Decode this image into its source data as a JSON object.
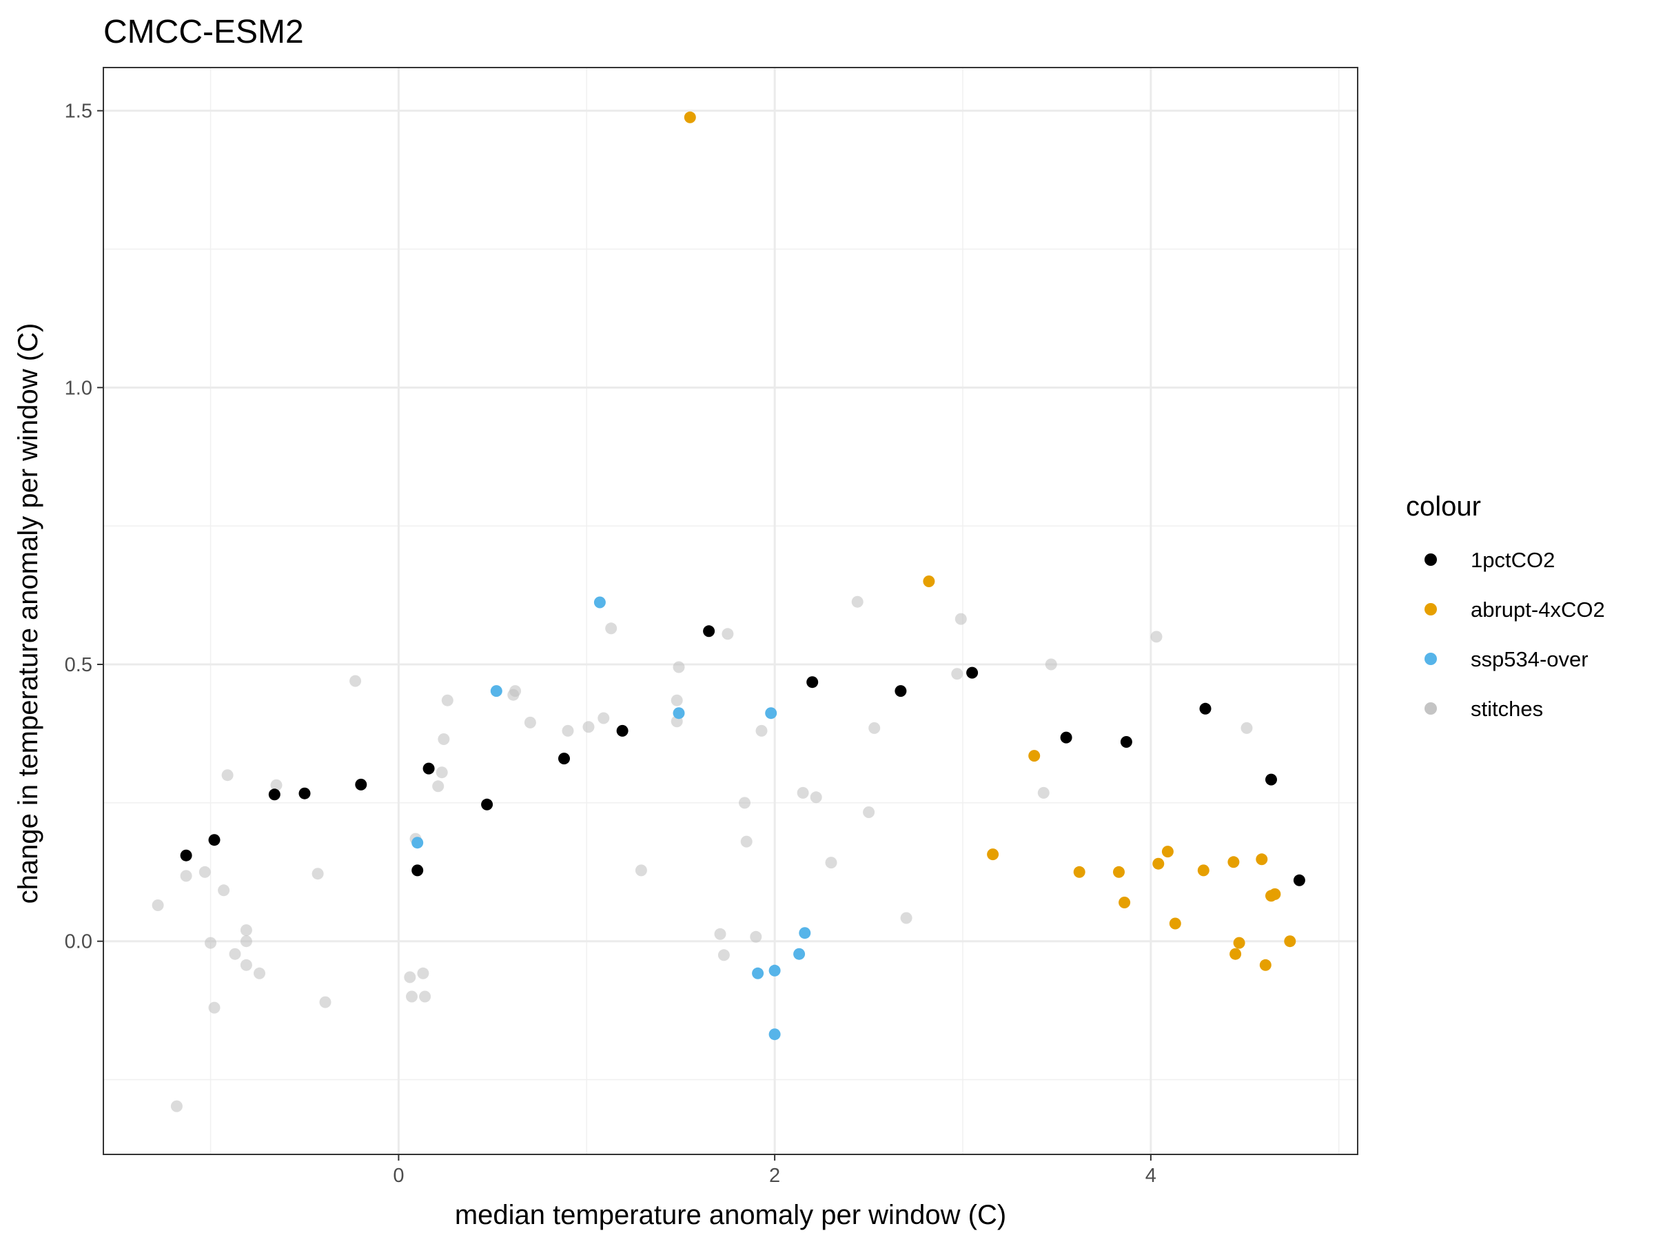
{
  "chart_data": {
    "type": "scatter",
    "title": "CMCC-ESM2",
    "xlabel": "median temperature anomaly per window (C)",
    "ylabel": "change in temperature anomaly per window (C)",
    "xlim": [
      -1.57,
      5.1
    ],
    "ylim": [
      -0.385,
      1.578
    ],
    "x_ticks": [
      0,
      2,
      4
    ],
    "x_tick_labels": [
      "0",
      "2",
      "4"
    ],
    "y_ticks": [
      0.0,
      0.5,
      1.0,
      1.5
    ],
    "y_tick_labels": [
      "0.0",
      "0.5",
      "1.0",
      "1.5"
    ],
    "grid": true,
    "legend": {
      "title": "colour",
      "position": "right"
    },
    "series": [
      {
        "name": "stitches",
        "color": "#BEBEBE",
        "points": [
          [
            -1.28,
            0.065
          ],
          [
            -1.18,
            -0.298
          ],
          [
            -1.13,
            0.118
          ],
          [
            -1.03,
            0.125
          ],
          [
            -1.0,
            -0.003
          ],
          [
            -0.98,
            -0.12
          ],
          [
            -0.93,
            0.092
          ],
          [
            -0.91,
            0.3
          ],
          [
            -0.87,
            -0.023
          ],
          [
            -0.81,
            0.02
          ],
          [
            -0.81,
            0.0
          ],
          [
            -0.81,
            -0.043
          ],
          [
            -0.74,
            -0.058
          ],
          [
            -0.65,
            0.282
          ],
          [
            -0.43,
            0.122
          ],
          [
            -0.39,
            -0.11
          ],
          [
            -0.23,
            0.47
          ],
          [
            0.06,
            -0.065
          ],
          [
            0.07,
            -0.1
          ],
          [
            0.09,
            0.185
          ],
          [
            0.13,
            -0.058
          ],
          [
            0.14,
            -0.1
          ],
          [
            0.21,
            0.28
          ],
          [
            0.23,
            0.305
          ],
          [
            0.24,
            0.365
          ],
          [
            0.26,
            0.435
          ],
          [
            0.61,
            0.445
          ],
          [
            0.62,
            0.452
          ],
          [
            0.7,
            0.395
          ],
          [
            0.9,
            0.38
          ],
          [
            1.01,
            0.387
          ],
          [
            1.09,
            0.403
          ],
          [
            1.13,
            0.565
          ],
          [
            1.29,
            0.128
          ],
          [
            1.48,
            0.435
          ],
          [
            1.48,
            0.397
          ],
          [
            1.49,
            0.495
          ],
          [
            1.71,
            0.013
          ],
          [
            1.73,
            -0.025
          ],
          [
            1.75,
            0.555
          ],
          [
            1.84,
            0.25
          ],
          [
            1.85,
            0.18
          ],
          [
            1.9,
            0.008
          ],
          [
            1.93,
            0.38
          ],
          [
            2.15,
            0.268
          ],
          [
            2.22,
            0.26
          ],
          [
            2.3,
            0.142
          ],
          [
            2.44,
            0.613
          ],
          [
            2.5,
            0.233
          ],
          [
            2.53,
            0.385
          ],
          [
            2.7,
            0.042
          ],
          [
            2.97,
            0.483
          ],
          [
            2.99,
            0.582
          ],
          [
            3.43,
            0.268
          ],
          [
            3.47,
            0.5
          ],
          [
            4.03,
            0.55
          ],
          [
            4.51,
            0.385
          ]
        ]
      },
      {
        "name": "1pctCO2",
        "color": "#000000",
        "points": [
          [
            -1.13,
            0.155
          ],
          [
            -0.98,
            0.183
          ],
          [
            -0.66,
            0.265
          ],
          [
            -0.5,
            0.267
          ],
          [
            -0.2,
            0.283
          ],
          [
            0.1,
            0.128
          ],
          [
            0.16,
            0.312
          ],
          [
            0.47,
            0.247
          ],
          [
            0.88,
            0.33
          ],
          [
            1.19,
            0.38
          ],
          [
            1.65,
            0.56
          ],
          [
            2.2,
            0.468
          ],
          [
            2.67,
            0.452
          ],
          [
            3.05,
            0.485
          ],
          [
            3.55,
            0.368
          ],
          [
            3.87,
            0.36
          ],
          [
            4.29,
            0.42
          ],
          [
            4.64,
            0.292
          ],
          [
            4.79,
            0.11
          ]
        ]
      },
      {
        "name": "abrupt-4xCO2",
        "color": "#E69F00",
        "points": [
          [
            1.55,
            1.488
          ],
          [
            2.82,
            0.65
          ],
          [
            3.16,
            0.157
          ],
          [
            3.38,
            0.335
          ],
          [
            3.62,
            0.125
          ],
          [
            3.83,
            0.125
          ],
          [
            3.86,
            0.07
          ],
          [
            4.04,
            0.14
          ],
          [
            4.09,
            0.162
          ],
          [
            4.13,
            0.032
          ],
          [
            4.28,
            0.128
          ],
          [
            4.44,
            0.143
          ],
          [
            4.45,
            -0.023
          ],
          [
            4.47,
            -0.003
          ],
          [
            4.59,
            0.148
          ],
          [
            4.61,
            -0.043
          ],
          [
            4.64,
            0.082
          ],
          [
            4.66,
            0.085
          ],
          [
            4.74,
            0.0
          ]
        ]
      },
      {
        "name": "ssp534-over",
        "color": "#56B4E9",
        "points": [
          [
            0.1,
            0.178
          ],
          [
            0.52,
            0.452
          ],
          [
            1.07,
            0.612
          ],
          [
            1.49,
            0.412
          ],
          [
            1.91,
            -0.058
          ],
          [
            1.98,
            0.412
          ],
          [
            2.0,
            -0.053
          ],
          [
            2.0,
            -0.168
          ],
          [
            2.13,
            -0.023
          ],
          [
            2.16,
            0.015
          ]
        ]
      }
    ],
    "legend_order": [
      "1pctCO2",
      "abrupt-4xCO2",
      "ssp534-over",
      "stitches"
    ]
  }
}
